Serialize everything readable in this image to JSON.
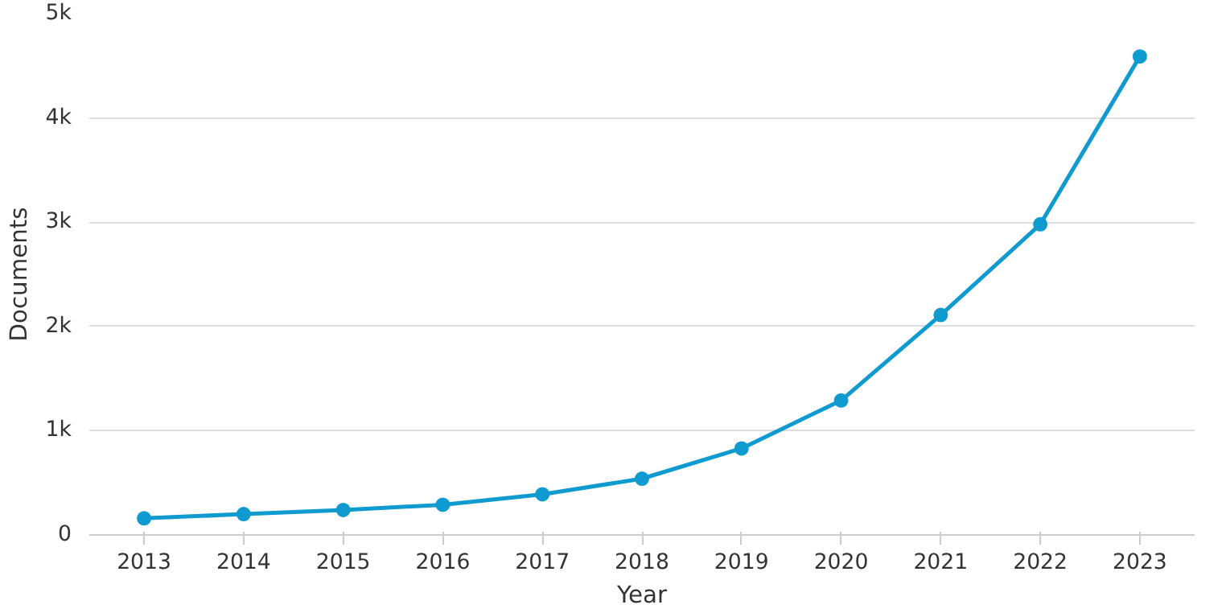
{
  "chart_data": {
    "type": "line",
    "xlabel": "Year",
    "ylabel": "Documents",
    "categories": [
      "2013",
      "2014",
      "2015",
      "2016",
      "2017",
      "2018",
      "2019",
      "2020",
      "2021",
      "2022",
      "2023"
    ],
    "series": [
      {
        "color": "#0f9bd0",
        "values": [
          160,
          200,
          240,
          290,
          390,
          540,
          830,
          1290,
          2110,
          2980,
          4590
        ]
      }
    ],
    "ylim": [
      0,
      5000
    ],
    "yticks": [
      0,
      {
        "value": 1000,
        "label": "1k"
      },
      {
        "value": 2000,
        "label": "2k"
      },
      {
        "value": 3000,
        "label": "3k"
      },
      {
        "value": 4000,
        "label": "4k"
      },
      {
        "value": 5000,
        "label": "5k"
      }
    ],
    "grid": "y",
    "marker": "circle",
    "line_style": "solid"
  }
}
